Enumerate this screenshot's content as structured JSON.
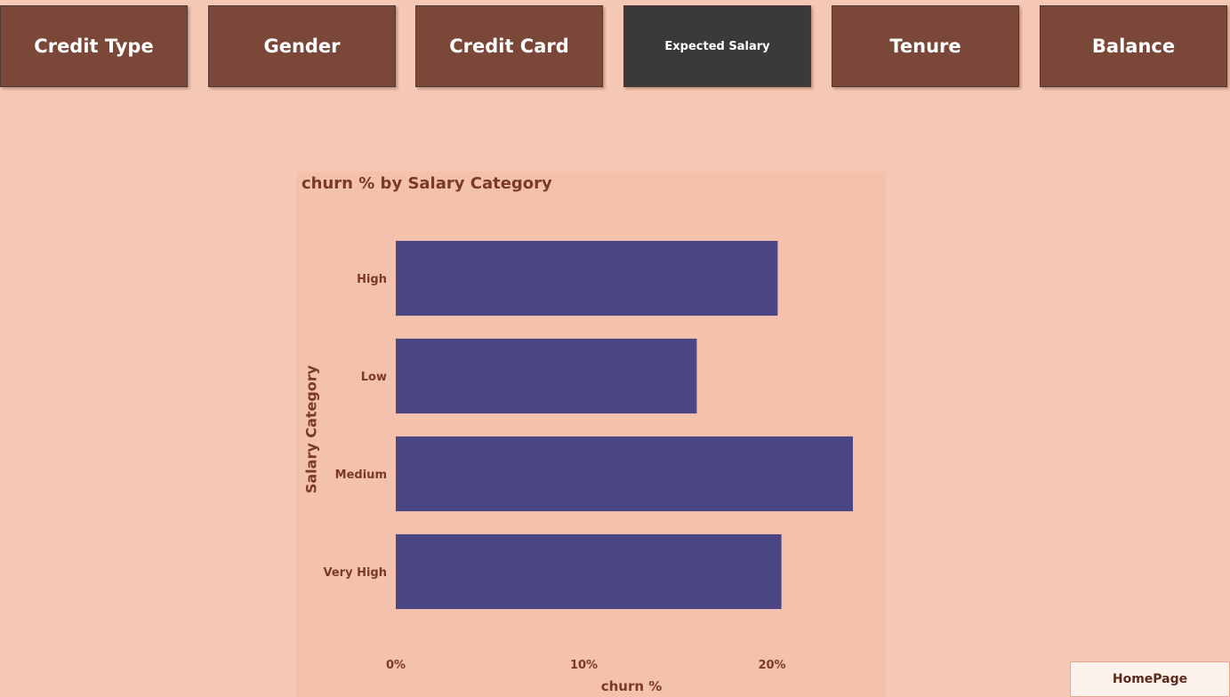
{
  "nav": {
    "buttons": [
      {
        "label": "Credit Type",
        "active": false
      },
      {
        "label": "Gender",
        "active": false
      },
      {
        "label": "Credit Card",
        "active": false
      },
      {
        "label": "Expected Salary",
        "active": true
      },
      {
        "label": "Tenure",
        "active": false
      },
      {
        "label": "Balance",
        "active": false
      }
    ]
  },
  "home_button": {
    "label": "HomePage"
  },
  "colors": {
    "background": "#f6c9b6",
    "panel": "#f4c1ad",
    "bar": "#4a4585",
    "nav_button": "#7a4738",
    "nav_button_active": "#3b3a39",
    "text": "#7a3a25"
  },
  "chart_data": {
    "type": "bar",
    "orientation": "horizontal",
    "title": "churn % by Salary Category",
    "xlabel": "churn %",
    "ylabel": "Salary Category",
    "categories": [
      "High",
      "Low",
      "Medium",
      "Very High"
    ],
    "values": [
      20.3,
      16.0,
      24.3,
      20.5
    ],
    "x_ticks": [
      "0%",
      "10%",
      "20%"
    ],
    "x_tick_values": [
      0,
      10,
      20
    ],
    "xlim": [
      0,
      24.3
    ],
    "grid": false,
    "legend": "none"
  }
}
